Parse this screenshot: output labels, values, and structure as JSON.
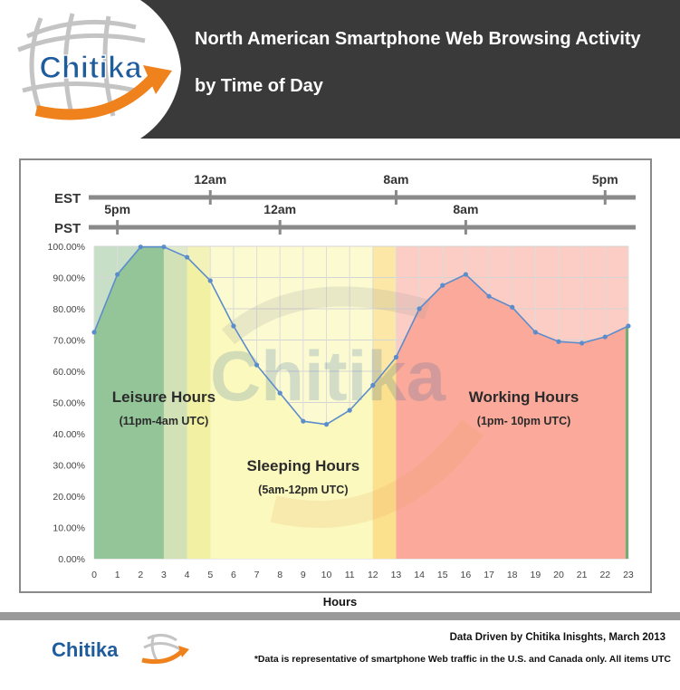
{
  "header": {
    "title_line1": "North American Smartphone Web Browsing Activity",
    "title_line2": "by Time of Day",
    "logo_text": "Chitika"
  },
  "chart_data": {
    "type": "area",
    "x": [
      0,
      1,
      2,
      3,
      4,
      5,
      6,
      7,
      8,
      9,
      10,
      11,
      12,
      13,
      14,
      15,
      16,
      17,
      18,
      19,
      20,
      21,
      22,
      23
    ],
    "series": [
      {
        "values": [
          72.5,
          91,
          99.8,
          99.8,
          96.5,
          89,
          74.5,
          62,
          53,
          44,
          43,
          47.5,
          55.5,
          64.5,
          80,
          87.5,
          91,
          84,
          80.5,
          72.5,
          69.5,
          69,
          71,
          74.5
        ]
      }
    ],
    "xlabel": "Hours",
    "ylabel": "",
    "ylim": [
      0,
      100
    ],
    "y_tick_labels": [
      "0.00%",
      "10.00%",
      "20.00%",
      "30.00%",
      "40.00%",
      "50.00%",
      "60.00%",
      "70.00%",
      "80.00%",
      "90.00%",
      "100.00%"
    ],
    "x_tick_labels": [
      "0",
      "1",
      "2",
      "3",
      "4",
      "5",
      "6",
      "7",
      "8",
      "9",
      "10",
      "11",
      "12",
      "13",
      "14",
      "15",
      "16",
      "17",
      "18",
      "19",
      "20",
      "21",
      "22",
      "23"
    ],
    "grid": true,
    "line_color": "#5b8ccc",
    "bands": [
      {
        "from": 0,
        "to": 3,
        "color": "#c8dfc7"
      },
      {
        "from": 3,
        "to": 4,
        "color": "#e1ebcc"
      },
      {
        "from": 4,
        "to": 5,
        "color": "#f3f2b9"
      },
      {
        "from": 5,
        "to": 12,
        "color": "#fbfad0"
      },
      {
        "from": 12,
        "to": 13,
        "color": "#fde7a6"
      },
      {
        "from": 13,
        "to": 23,
        "color": "#fbcdc4"
      }
    ],
    "area_bands": [
      {
        "from": 0,
        "to": 3,
        "color": "#93c598"
      },
      {
        "from": 3,
        "to": 4,
        "color": "#d3e2b6"
      },
      {
        "from": 4,
        "to": 5,
        "color": "#f2f0a2"
      },
      {
        "from": 5,
        "to": 12,
        "color": "#fbf9be"
      },
      {
        "from": 12,
        "to": 13,
        "color": "#fbe08d"
      },
      {
        "from": 13,
        "to": 23,
        "color": "#fba99a"
      }
    ],
    "annotations": [
      {
        "title": "Leisure Hours",
        "subtitle": "(11pm-4am UTC)",
        "x": 3,
        "y": 47.5
      },
      {
        "title": "Sleeping Hours",
        "subtitle": "(5am-12pm UTC)",
        "x": 9,
        "y": 25.5
      },
      {
        "title": "Working Hours",
        "subtitle": "(1pm- 10pm UTC)",
        "x": 18.5,
        "y": 47.5
      }
    ],
    "timezones": [
      {
        "name": "EST",
        "marks": [
          {
            "label": "12am",
            "x": 5
          },
          {
            "label": "8am",
            "x": 13
          },
          {
            "label": "5pm",
            "x": 22
          }
        ]
      },
      {
        "name": "PST",
        "marks": [
          {
            "label": "5pm",
            "x": 1
          },
          {
            "label": "12am",
            "x": 8
          },
          {
            "label": "8am",
            "x": 16
          }
        ]
      }
    ]
  },
  "footer": {
    "source": "Data Driven by Chitika Inisghts, March 2013",
    "note": "*Data is representative of smartphone Web traffic in the U.S. and Canada only. All items UTC",
    "logo_text": "Chitika"
  },
  "colors": {
    "header_bg": "#3a3a3a",
    "logo_blue": "#1f5c9c",
    "logo_orange": "#f0821e"
  }
}
